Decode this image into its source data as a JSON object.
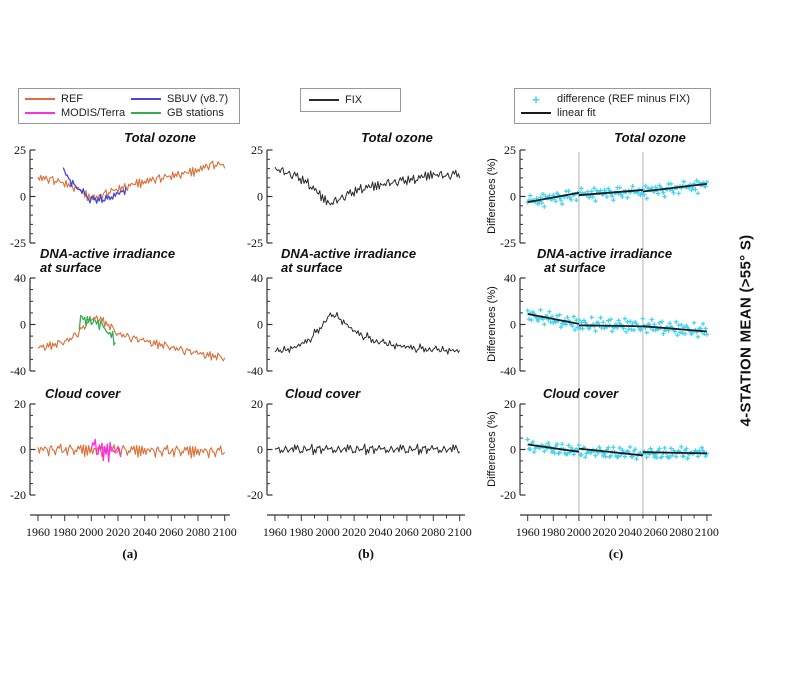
{
  "figure": {
    "background": "#ffffff",
    "side_label": "4-STATION MEAN (>55° S)",
    "panel_letters": [
      "(a)",
      "(b)",
      "(c)"
    ]
  },
  "legends": {
    "a": {
      "items": [
        {
          "label": "REF",
          "color": "#DC7038",
          "marker": "line"
        },
        {
          "label": "SBUV (v8.7)",
          "color": "#4646D8",
          "marker": "line"
        },
        {
          "label": "MODIS/Terra",
          "color": "#FA30E0",
          "marker": "line"
        },
        {
          "label": "GB stations",
          "color": "#35AD52",
          "marker": "line"
        }
      ]
    },
    "b": {
      "items": [
        {
          "label": "FIX",
          "color": "#2b2b2b",
          "marker": "line"
        }
      ]
    },
    "c": {
      "items": [
        {
          "label": "difference (REF minus FIX)",
          "color": "#41D3F0",
          "marker": "plus"
        },
        {
          "label": "linear fit",
          "color": "#1a1a1a",
          "marker": "line"
        }
      ]
    }
  },
  "chart_data": {
    "type": "line",
    "title": "4-STATION MEAN (>55° S)",
    "x": {
      "lim": [
        1954,
        2104
      ],
      "major_ticks": [
        1960,
        1980,
        2000,
        2020,
        2040,
        2060,
        2080,
        2100
      ],
      "minor_step": 10
    },
    "vlines": {
      "col": "c",
      "years": [
        2000,
        2050
      ],
      "color": "#b3b3b3"
    },
    "noise_patterns": [
      [
        0.1,
        -0.62,
        0.81,
        -0.3,
        0.55,
        -0.94,
        0.2,
        0.72,
        -0.48,
        0.36,
        -0.15,
        0.95,
        -0.71,
        0.28,
        -0.42,
        0.66,
        -0.08,
        -0.85,
        0.49,
        0.03,
        -0.58,
        0.77,
        -0.27,
        0.4,
        -0.98,
        0.52,
        0.12,
        -0.67,
        0.88,
        -0.33,
        0.6,
        -0.02,
        -0.76,
        0.24,
        0.92,
        -0.5,
        0.64,
        -0.88,
        0.31,
        -0.18
      ],
      [
        -0.44,
        0.7,
        -0.22,
        0.53,
        -0.86,
        0.3,
        0.9,
        -0.6,
        0.14,
        -0.35,
        0.8,
        -0.74,
        0.41,
        0.08,
        -0.52,
        0.62,
        -0.96,
        0.26,
        0.47,
        -0.12,
        0.73,
        -0.38,
        -0.64,
        0.56,
        0.04,
        -0.82,
        0.34,
        0.87,
        -0.26,
        0.68,
        -0.46,
        0.18,
        -0.7,
        0.93,
        -0.1,
        0.5,
        -0.57,
        0.78,
        -0.9,
        0.38
      ],
      [
        0.58,
        -0.32,
        0.44,
        -0.72,
        0.21,
        0.84,
        -0.51,
        0.09,
        -0.91,
        0.63,
        0.37,
        -0.2,
        0.76,
        -0.62,
        0.06,
        0.5,
        -0.41,
        0.97,
        -0.77,
        0.29,
        -0.13,
        0.54,
        -0.83,
        0.71,
        0.23,
        -0.47,
        0.16,
        -0.66,
        0.82,
        -0.04,
        0.39,
        -0.93,
        0.59,
        0.22,
        -0.56,
        0.89,
        -0.36,
        0.11,
        -0.79,
        0.48
      ]
    ],
    "panels": [
      {
        "id": "a1",
        "col": "a",
        "row": 0,
        "title": "Total ozone",
        "ylim": [
          -25,
          25
        ],
        "yticks": [
          25,
          0,
          -25
        ],
        "yminor": 5,
        "series": [
          {
            "name": "REF",
            "color": "#DC7038",
            "x0": 1960,
            "x1": 2100,
            "step": 1,
            "amp": 3.0,
            "patterns": [
              0,
              2
            ],
            "offset": 0,
            "width": 1.1,
            "anchors": [
              [
                1960,
                10
              ],
              [
                1970,
                9
              ],
              [
                1980,
                7
              ],
              [
                1990,
                4
              ],
              [
                1998,
                0
              ],
              [
                2005,
                -1
              ],
              [
                2012,
                2
              ],
              [
                2025,
                5
              ],
              [
                2040,
                8
              ],
              [
                2060,
                11
              ],
              [
                2075,
                13
              ],
              [
                2090,
                17
              ],
              [
                2100,
                17
              ]
            ]
          },
          {
            "name": "SBUV (v8.7)",
            "color": "#4646D8",
            "x0": 1979,
            "x1": 2026,
            "step": 1,
            "amp": 3.0,
            "patterns": [
              1,
              0
            ],
            "offset": 5,
            "width": 1.3,
            "anchors": [
              [
                1979,
                14
              ],
              [
                1985,
                8
              ],
              [
                1992,
                3
              ],
              [
                1998,
                -1
              ],
              [
                2005,
                -2
              ],
              [
                2012,
                -1
              ],
              [
                2018,
                0
              ],
              [
                2023,
                3
              ],
              [
                2026,
                4
              ]
            ]
          }
        ]
      },
      {
        "id": "a2",
        "col": "a",
        "row": 1,
        "title": "DNA-active irradiance",
        "title2": "at surface",
        "ylim": [
          -40,
          40
        ],
        "yticks": [
          40,
          0,
          -40
        ],
        "yminor": 10,
        "series": [
          {
            "name": "REF",
            "color": "#DC7038",
            "x0": 1960,
            "x1": 2100,
            "step": 1,
            "amp": 4.5,
            "patterns": [
              2,
              0
            ],
            "offset": 8,
            "width": 1.1,
            "anchors": [
              [
                1960,
                -20
              ],
              [
                1975,
                -17
              ],
              [
                1985,
                -12
              ],
              [
                1993,
                -4
              ],
              [
                2000,
                4
              ],
              [
                2005,
                6
              ],
              [
                2012,
                0
              ],
              [
                2020,
                -8
              ],
              [
                2035,
                -13
              ],
              [
                2050,
                -17
              ],
              [
                2065,
                -21
              ],
              [
                2080,
                -25
              ],
              [
                2100,
                -29
              ]
            ]
          },
          {
            "name": "GB stations",
            "color": "#35AD52",
            "x0": 1991,
            "x1": 2018,
            "step": 1,
            "amp": 9.0,
            "patterns": [
              0,
              1
            ],
            "offset": 17,
            "width": 1.3,
            "anchors": [
              [
                1991,
                2
              ],
              [
                1998,
                4
              ],
              [
                2004,
                2
              ],
              [
                2010,
                -4
              ],
              [
                2015,
                -10
              ],
              [
                2018,
                -14
              ]
            ]
          }
        ]
      },
      {
        "id": "a3",
        "col": "a",
        "row": 2,
        "title": "Cloud cover",
        "ylim": [
          -20,
          20
        ],
        "yticks": [
          20,
          0,
          -20
        ],
        "yminor": 5,
        "series": [
          {
            "name": "REF",
            "color": "#DC7038",
            "x0": 1960,
            "x1": 2100,
            "step": 1,
            "amp": 3.3,
            "patterns": [
              1,
              2
            ],
            "offset": 3,
            "width": 1.1,
            "anchors": [
              [
                1960,
                0
              ],
              [
                2100,
                -1
              ]
            ]
          },
          {
            "name": "MODIS/Terra",
            "color": "#FA30E0",
            "x0": 2000,
            "x1": 2022,
            "step": 1,
            "amp": 5.5,
            "patterns": [
              2,
              1
            ],
            "offset": 9,
            "width": 1.3,
            "anchors": [
              [
                2000,
                0
              ],
              [
                2022,
                -1
              ]
            ]
          }
        ]
      },
      {
        "id": "b1",
        "col": "b",
        "row": 0,
        "title": "Total ozone",
        "ylim": [
          -25,
          25
        ],
        "yticks": [
          25,
          0,
          -25
        ],
        "yminor": 5,
        "series": [
          {
            "name": "FIX",
            "color": "#2b2b2b",
            "x0": 1960,
            "x1": 2100,
            "step": 1,
            "amp": 3.2,
            "patterns": [
              1,
              2
            ],
            "offset": 12,
            "width": 1.0,
            "anchors": [
              [
                1960,
                15
              ],
              [
                1975,
                11
              ],
              [
                1985,
                7
              ],
              [
                1995,
                0
              ],
              [
                2002,
                -4
              ],
              [
                2010,
                -1
              ],
              [
                2025,
                4
              ],
              [
                2045,
                7
              ],
              [
                2065,
                9
              ],
              [
                2080,
                12
              ],
              [
                2090,
                11
              ],
              [
                2100,
                12
              ]
            ]
          }
        ]
      },
      {
        "id": "b2",
        "col": "b",
        "row": 1,
        "title": "DNA-active irradiance",
        "title2": "at surface",
        "ylim": [
          -40,
          40
        ],
        "yticks": [
          40,
          0,
          -40
        ],
        "yminor": 10,
        "series": [
          {
            "name": "FIX",
            "color": "#2b2b2b",
            "x0": 1960,
            "x1": 2100,
            "step": 1,
            "amp": 5.0,
            "patterns": [
              0,
              1
            ],
            "offset": 21,
            "width": 1.0,
            "anchors": [
              [
                1960,
                -24
              ],
              [
                1975,
                -20
              ],
              [
                1985,
                -14
              ],
              [
                1993,
                -5
              ],
              [
                2000,
                6
              ],
              [
                2006,
                8
              ],
              [
                2012,
                2
              ],
              [
                2020,
                -6
              ],
              [
                2035,
                -14
              ],
              [
                2050,
                -18
              ],
              [
                2070,
                -21
              ],
              [
                2100,
                -23
              ]
            ]
          }
        ]
      },
      {
        "id": "b3",
        "col": "b",
        "row": 2,
        "title": "Cloud cover",
        "ylim": [
          -20,
          20
        ],
        "yticks": [
          20,
          0,
          -20
        ],
        "yminor": 5,
        "series": [
          {
            "name": "FIX",
            "color": "#2b2b2b",
            "x0": 1960,
            "x1": 2100,
            "step": 1,
            "amp": 3.3,
            "patterns": [
              2,
              0
            ],
            "offset": 27,
            "width": 1.0,
            "anchors": [
              [
                1960,
                0
              ],
              [
                2100,
                0
              ]
            ]
          }
        ]
      },
      {
        "id": "c1",
        "col": "c",
        "row": 0,
        "title": "Total ozone",
        "ylabel": "Differences (%)",
        "ylim": [
          -25,
          25
        ],
        "yticks": [
          25,
          0,
          -25
        ],
        "yminor": 5,
        "scatter": {
          "name": "difference (REF minus FIX)",
          "color": "#41D3F0",
          "x0": 1960,
          "x1": 2100,
          "step": 1,
          "amp": 4.8,
          "patterns": [
            2,
            1
          ],
          "offset": 0,
          "anchors": [
            [
              1960,
              -3
            ],
            [
              2000,
              1
            ],
            [
              2050,
              2.5
            ],
            [
              2100,
              6
            ]
          ]
        },
        "fits": [
          [
            [
              1960,
              -3
            ],
            [
              2000,
              2
            ]
          ],
          [
            [
              2000,
              0.7
            ],
            [
              2050,
              3.5
            ]
          ],
          [
            [
              2050,
              2.7
            ],
            [
              2100,
              6.8
            ]
          ]
        ]
      },
      {
        "id": "c2",
        "col": "c",
        "row": 1,
        "title": "DNA-active irradiance",
        "title2": "at surface",
        "ylabel": "Differences (%)",
        "ylim": [
          -40,
          40
        ],
        "yticks": [
          40,
          0,
          -40
        ],
        "yminor": 10,
        "scatter": {
          "name": "difference (REF minus FIX)",
          "color": "#41D3F0",
          "x0": 1960,
          "x1": 2100,
          "step": 1,
          "amp": 7.5,
          "patterns": [
            0,
            2
          ],
          "offset": 11,
          "anchors": [
            [
              1960,
              8
            ],
            [
              1990,
              2
            ],
            [
              2000,
              0
            ],
            [
              2050,
              -1.5
            ],
            [
              2100,
              -6
            ]
          ]
        },
        "fits": [
          [
            [
              1960,
              9
            ],
            [
              2000,
              0.5
            ]
          ],
          [
            [
              2000,
              -0.8
            ],
            [
              2050,
              -1.5
            ]
          ],
          [
            [
              2050,
              -1.5
            ],
            [
              2100,
              -6
            ]
          ]
        ]
      },
      {
        "id": "c3",
        "col": "c",
        "row": 2,
        "title": "Cloud cover",
        "ylabel": "Differences (%)",
        "ylim": [
          -20,
          20
        ],
        "yticks": [
          20,
          0,
          -20
        ],
        "yminor": 5,
        "scatter": {
          "name": "difference (REF minus FIX)",
          "color": "#41D3F0",
          "x0": 1960,
          "x1": 2100,
          "step": 1,
          "amp": 4.5,
          "patterns": [
            1,
            0
          ],
          "offset": 23,
          "anchors": [
            [
              1960,
              1.5
            ],
            [
              2000,
              -1
            ],
            [
              2050,
              -2
            ],
            [
              2100,
              -1.5
            ]
          ]
        },
        "fits": [
          [
            [
              1960,
              2.2
            ],
            [
              2000,
              -1
            ]
          ],
          [
            [
              2000,
              0.4
            ],
            [
              2050,
              -2.6
            ]
          ],
          [
            [
              2050,
              -1.2
            ],
            [
              2100,
              -1.7
            ]
          ]
        ]
      }
    ]
  }
}
